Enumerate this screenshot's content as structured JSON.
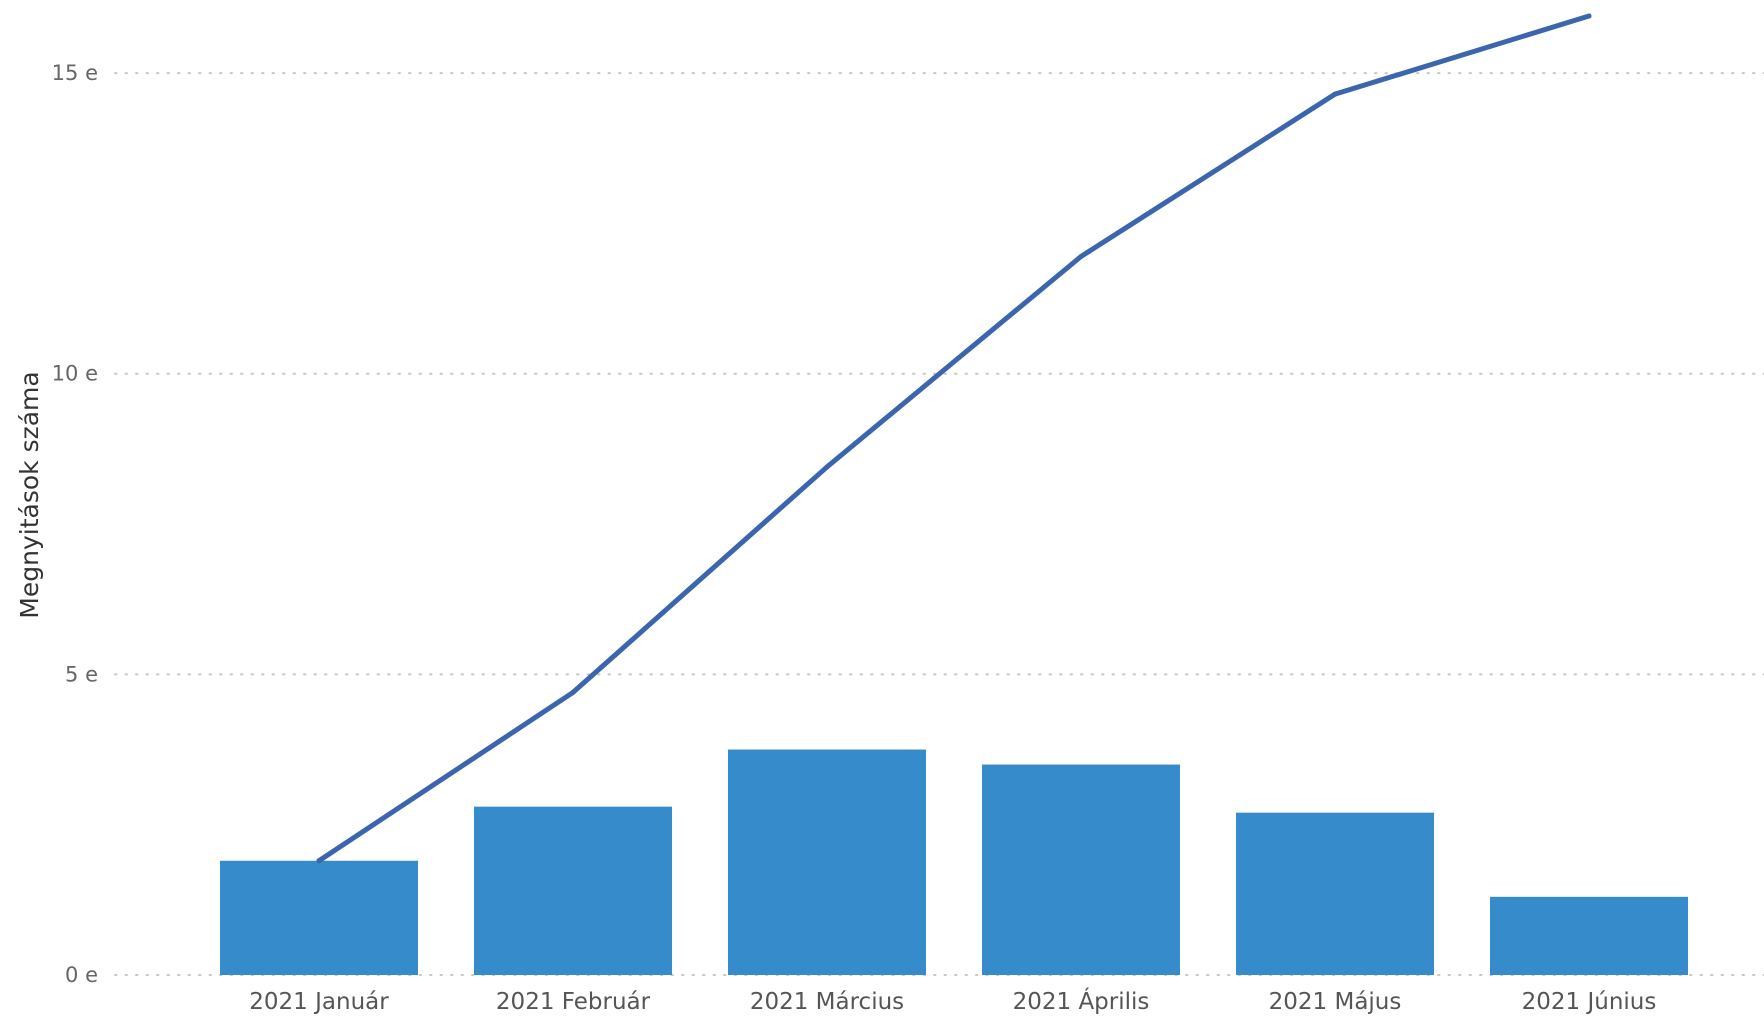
{
  "chart_data": {
    "type": "bar",
    "categories": [
      "2021 Január",
      "2021 Február",
      "2021 Március",
      "2021 Április",
      "2021 Május",
      "2021 Június"
    ],
    "series": [
      {
        "type": "bar",
        "values": [
          1900,
          2800,
          3750,
          3500,
          2700,
          1300
        ]
      },
      {
        "type": "line",
        "values": [
          1900,
          4700,
          8450,
          11950,
          14650,
          15950
        ]
      }
    ],
    "ylabel": "Megnyitások száma",
    "xlabel": "",
    "ylim": [
      0,
      15950
    ],
    "y_ticks": [
      0,
      5000,
      10000,
      15000
    ],
    "y_tick_labels": [
      "0 e",
      "5 e",
      "10 e",
      "15 e"
    ],
    "grid": true,
    "colors": {
      "bar": "#368ccb",
      "line": "#3b66ad",
      "grid": "#c8c8c8"
    }
  }
}
